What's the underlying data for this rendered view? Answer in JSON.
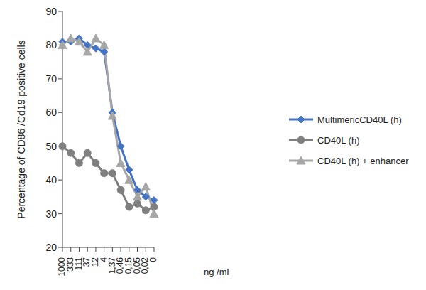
{
  "chart_data": {
    "type": "line",
    "x_label": "ng /ml",
    "y_label": "Percentage of CD86 /Cd19 positive cells",
    "categories": [
      "1000",
      "333",
      "111",
      "37",
      "12",
      "4",
      "1,37",
      "0,46",
      "0,15",
      "0,05",
      "0,02",
      "0"
    ],
    "ylim": [
      20,
      90
    ],
    "yticks": [
      20,
      30,
      40,
      50,
      60,
      70,
      80,
      90
    ],
    "grid": false,
    "legend": "right",
    "series": [
      {
        "name": "MultimericCD40L (h)",
        "color": "#4472c4",
        "marker": "diamond",
        "values": [
          81,
          81,
          82,
          80,
          79,
          78,
          60,
          50,
          43,
          37,
          35,
          34
        ]
      },
      {
        "name": "CD40L (h)",
        "color": "#7f7f7f",
        "marker": "circle",
        "values": [
          50,
          48,
          45,
          48,
          45,
          42,
          42,
          37,
          32,
          33,
          31,
          32
        ]
      },
      {
        "name": "CD40L (h) + enhancer",
        "color": "#a6a6a6",
        "marker": "triangle",
        "values": [
          80,
          82,
          81,
          78,
          82,
          80,
          59,
          45,
          40,
          35,
          38,
          30
        ]
      }
    ]
  }
}
